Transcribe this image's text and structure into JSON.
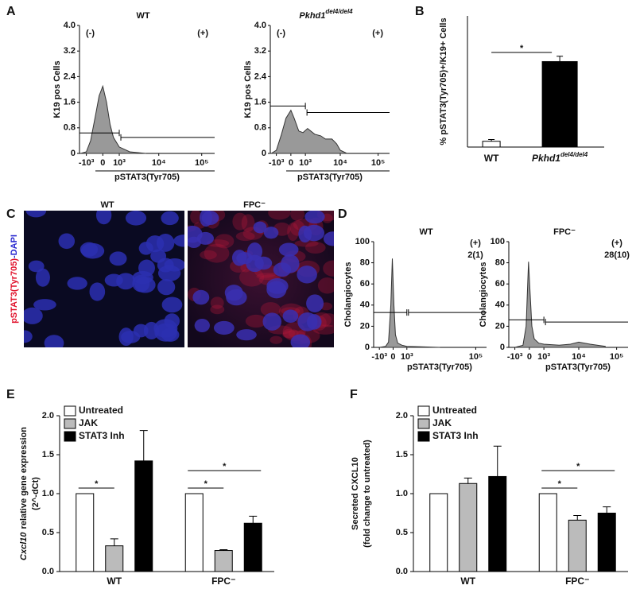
{
  "panel_labels": [
    "A",
    "B",
    "C",
    "D",
    "E",
    "F"
  ],
  "image_panel": {
    "ylabel_parts": [
      "pSTAT3(Tyr705)",
      "-DAPI"
    ],
    "images": [
      {
        "title": "WT"
      },
      {
        "title": "FPC⁻"
      }
    ]
  },
  "chart_data": [
    {
      "type": "area",
      "title": "WT",
      "ylabel": "K19 pos Cells",
      "xlabel": "pSTAT3(Tyr705)",
      "xscale": "biexponential",
      "color": "#999999",
      "x": [
        -1500,
        -1000,
        -700,
        -400,
        -200,
        0,
        200,
        400,
        600,
        1000,
        2000,
        5000
      ],
      "values": [
        0,
        0.05,
        0.4,
        1.2,
        1.8,
        2.1,
        1.6,
        0.9,
        0.5,
        0.2,
        0.05,
        0
      ],
      "xlim": [
        -1600,
        200000
      ],
      "ylim": [
        0,
        4
      ],
      "xticks": [
        {
          "value": -1000,
          "label": "-10³"
        },
        0,
        {
          "value": 1000,
          "label": "10³"
        },
        {
          "value": 10000,
          "label": "10⁴"
        },
        {
          "value": 100000,
          "label": "10⁵"
        }
      ],
      "yticks": [
        0,
        0.8,
        1.6,
        2.4,
        3.2,
        {
          "value": 4,
          "label": "4.0"
        }
      ],
      "gate_labels": [
        "(-)",
        "(+)"
      ]
    },
    {
      "type": "area",
      "title": {
        "text": "Pkhd1",
        "sup": "del4/del4"
      },
      "ylabel": "K19 pos Cells",
      "xlabel": "pSTAT3(Tyr705)",
      "xscale": "biexponential",
      "color": "#999999",
      "x": [
        -1500,
        -1000,
        -600,
        -300,
        0,
        200,
        500,
        800,
        1200,
        2000,
        3000,
        4000,
        6000,
        8000,
        10000,
        15000
      ],
      "values": [
        0,
        0.1,
        0.6,
        1.1,
        1.35,
        1.1,
        0.7,
        0.65,
        0.78,
        0.6,
        0.55,
        0.45,
        0.45,
        0.3,
        0.1,
        0
      ],
      "xlim": [
        -1600,
        200000
      ],
      "ylim": [
        0,
        4
      ],
      "xticks": [
        {
          "value": -1000,
          "label": "-10³"
        },
        0,
        {
          "value": 1000,
          "label": "10³"
        },
        {
          "value": 10000,
          "label": "10⁴"
        },
        {
          "value": 100000,
          "label": "10⁵"
        }
      ],
      "yticks": [
        0,
        0.8,
        1.6,
        2.4,
        3.2,
        {
          "value": 4,
          "label": "4.0"
        }
      ],
      "gate_labels": [
        "(-)",
        "(+)"
      ]
    },
    {
      "type": "bar",
      "ylabel": "% pSTAT3(Tyr705)+/K19+ Cells",
      "categories": [
        "WT",
        {
          "text": "Pkhd1",
          "sup": "del4/del4"
        }
      ],
      "values": [
        1.3,
        19.2
      ],
      "errors": [
        0.4,
        1.2
      ],
      "colors": [
        "#ffffff",
        "#000000"
      ],
      "ylim": [
        0,
        25
      ],
      "significance": [
        "*"
      ]
    },
    {
      "type": "area",
      "title": "WT",
      "ylabel": "Cholangiocytes",
      "xlabel": "pSTAT3(Tyr705)",
      "xscale": "biexponential",
      "color": "#999999",
      "x": [
        -1000,
        -500,
        -300,
        -150,
        -50,
        50,
        150,
        300,
        600,
        1000,
        3000,
        10000
      ],
      "values": [
        0,
        1,
        5,
        40,
        84,
        40,
        12,
        4,
        2,
        1,
        0.5,
        0
      ],
      "xlim": [
        -1600,
        200000
      ],
      "ylim": [
        0,
        100
      ],
      "xticks": [
        {
          "value": -1000,
          "label": "-10³"
        },
        0,
        {
          "value": 1000,
          "label": "10³"
        },
        {
          "value": 100000,
          "label": "10⁵"
        }
      ],
      "yticks": [
        0,
        20,
        40,
        60,
        80,
        100
      ],
      "gate_labels": [
        "(+)"
      ],
      "count_label": "2(1)"
    },
    {
      "type": "area",
      "title": "FPC⁻",
      "ylabel": "Cholangiocytes",
      "xlabel": "pSTAT3(Tyr705)",
      "xscale": "biexponential",
      "color": "#999999",
      "x": [
        -1000,
        -400,
        -200,
        -50,
        50,
        150,
        300,
        600,
        1000,
        3000,
        6000,
        10000,
        20000,
        50000
      ],
      "values": [
        0,
        2,
        20,
        81,
        50,
        20,
        8,
        4,
        3,
        2,
        3,
        5,
        3,
        1
      ],
      "xlim": [
        -1600,
        200000
      ],
      "ylim": [
        0,
        100
      ],
      "xticks": [
        {
          "value": -1000,
          "label": "-10³"
        },
        0,
        {
          "value": 1000,
          "label": "10³"
        },
        {
          "value": 10000,
          "label": "10⁴"
        },
        {
          "value": 100000,
          "label": "10⁵"
        }
      ],
      "yticks": [
        0,
        20,
        40,
        60,
        80,
        100
      ],
      "gate_labels": [
        "(+)"
      ],
      "count_label": "28(10)"
    },
    {
      "type": "grouped_bar",
      "ylabel_lines": [
        {
          "italic": "Cxcl10",
          "text": "relative gene expression"
        },
        "(2^-dCt)"
      ],
      "categories": [
        "WT",
        "FPC⁻"
      ],
      "series": [
        {
          "name": "Untreated",
          "color": "#ffffff",
          "values": [
            1.0,
            1.0
          ]
        },
        {
          "name": "JAK",
          "color": "#bbbbbb",
          "values": [
            0.33,
            0.27
          ],
          "errors": [
            0.09,
            0.01
          ]
        },
        {
          "name": "STAT3 Inh",
          "color": "#000000",
          "values": [
            1.42,
            0.62
          ],
          "errors": [
            0.39,
            0.09
          ]
        }
      ],
      "ylim": [
        0,
        2
      ],
      "yticks": [
        {
          "value": 0,
          "label": "0.0"
        },
        0.5,
        {
          "value": 1,
          "label": "1.0"
        },
        1.5,
        {
          "value": 2,
          "label": "2.0"
        }
      ],
      "significance": [
        "*",
        "*",
        "*"
      ]
    },
    {
      "type": "grouped_bar",
      "ylabel_lines": [
        "Secreted CXCL10",
        "(fold change to untreated)"
      ],
      "categories": [
        "WT",
        "FPC⁻"
      ],
      "series": [
        {
          "name": "Untreated",
          "color": "#ffffff",
          "values": [
            1.0,
            1.0
          ]
        },
        {
          "name": "JAK",
          "color": "#bbbbbb",
          "values": [
            1.13,
            0.66
          ],
          "errors": [
            0.07,
            0.06
          ]
        },
        {
          "name": "STAT3 Inh",
          "color": "#000000",
          "values": [
            1.22,
            0.75
          ],
          "errors": [
            0.39,
            0.08
          ]
        }
      ],
      "ylim": [
        0,
        2
      ],
      "yticks": [
        {
          "value": 0,
          "label": "0.0"
        },
        0.5,
        {
          "value": 1,
          "label": "1.0"
        },
        1.5,
        {
          "value": 2,
          "label": "2.0"
        }
      ],
      "significance": [
        "*",
        "*"
      ]
    }
  ]
}
